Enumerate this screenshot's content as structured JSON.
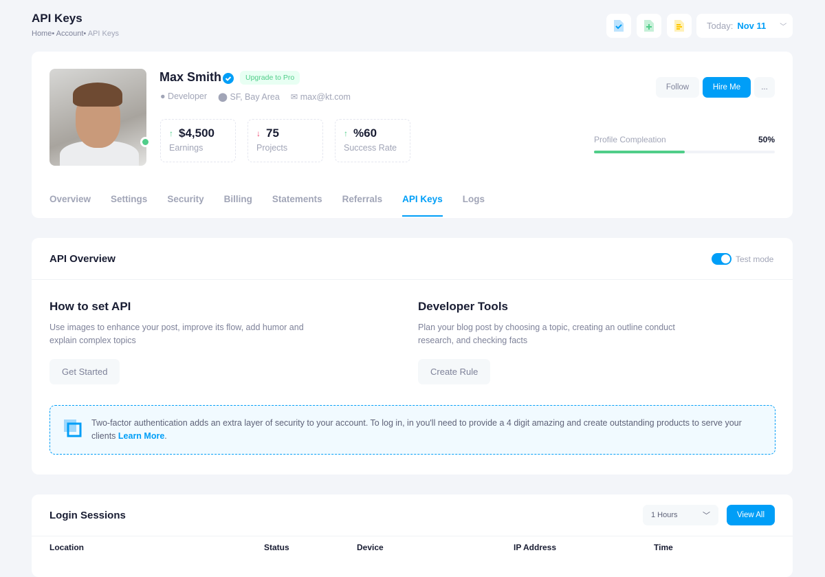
{
  "header": {
    "title": "API Keys",
    "breadcrumb": [
      "Home",
      "Account",
      "API Keys"
    ],
    "toolbar_icons": [
      "file-check-icon",
      "file-add-icon",
      "file-text-icon"
    ],
    "date_label": "Today:",
    "date_value": "Nov 11"
  },
  "profile": {
    "name": "Max Smith",
    "badge": "Upgrade to Pro",
    "role": "Developer",
    "location": "SF, Bay Area",
    "email": "max@kt.com",
    "stats": [
      {
        "value": "$4,500",
        "label": "Earnings",
        "trend": "up"
      },
      {
        "value": "75",
        "label": "Projects",
        "trend": "down"
      },
      {
        "value": "%60",
        "label": "Success Rate",
        "trend": "up"
      }
    ],
    "follow": "Follow",
    "hire": "Hire Me",
    "more": "...",
    "completion_label": "Profile Compleation",
    "completion_text": "50%",
    "completion": 50
  },
  "tabs": [
    "Overview",
    "Settings",
    "Security",
    "Billing",
    "Statements",
    "Referrals",
    "API Keys",
    "Logs"
  ],
  "active_tab": "API Keys",
  "api": {
    "title": "API Overview",
    "toggle_label": "Test mode",
    "toggle_on": true,
    "left": {
      "title": "How to set API",
      "text": "Use images to enhance your post, improve its flow, add humor and explain complex topics",
      "button": "Get Started"
    },
    "right": {
      "title": "Developer Tools",
      "text": "Plan your blog post by choosing a topic, creating an outline conduct research, and checking facts",
      "button": "Create Rule"
    },
    "notice": "Two-factor authentication adds an extra layer of security to your account. To log in, in you'll need to provide a 4 digit amazing and create outstanding products to serve your clients ",
    "notice_link": "Learn More",
    "notice_end": "."
  },
  "sessions": {
    "title": "Login Sessions",
    "filter": "1 Hours",
    "view_all": "View All",
    "columns": [
      "Location",
      "Status",
      "Device",
      "IP Address",
      "Time"
    ]
  },
  "colors": {
    "primary": "#009ef7",
    "success": "#50cd89",
    "danger": "#f1416c"
  }
}
